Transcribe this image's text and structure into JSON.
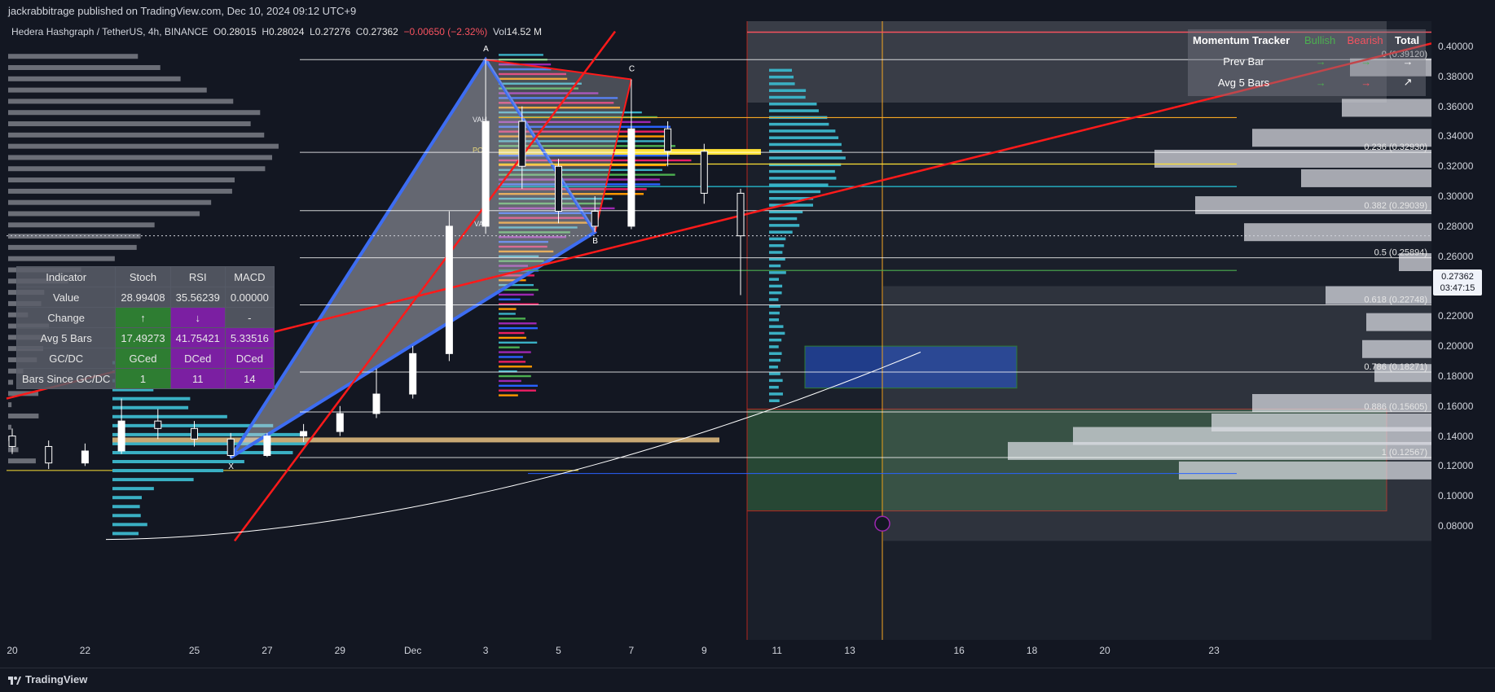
{
  "header": {
    "publisher": "jackrabbitrage published on TradingView.com, Dec 10, 2024 09:12 UTC+9",
    "symbol": "Hedera Hashgraph / TetherUS, 4h, BINANCE",
    "open_label": "O",
    "open": "0.28015",
    "high_label": "H",
    "high": "0.28024",
    "low_label": "L",
    "low": "0.27276",
    "close_label": "C",
    "close": "0.27362",
    "change": "−0.00650 (−2.32%)",
    "vol_label": "Vol",
    "vol": "14.52 M"
  },
  "momentum_tracker": {
    "title": "Momentum Tracker",
    "bullish": "Bullish",
    "bearish": "Bearish",
    "total": "Total",
    "rows": [
      {
        "label": "Prev Bar",
        "bull": "→",
        "bear": "→",
        "total": "→"
      },
      {
        "label": "Avg 5 Bars",
        "bull": "→",
        "bear": "→",
        "total": "↗"
      }
    ]
  },
  "indicator_table": {
    "headers": [
      "Indicator",
      "Stoch",
      "RSI",
      "MACD"
    ],
    "rows": [
      {
        "label": "Value",
        "stoch": "28.99408",
        "rsi": "35.56239",
        "macd": "0.00000"
      },
      {
        "label": "Change",
        "stoch": "↑",
        "rsi": "↓",
        "macd": "-"
      },
      {
        "label": "Avg 5 Bars",
        "stoch": "17.49273",
        "rsi": "41.75421",
        "macd": "5.33516"
      },
      {
        "label": "GC/DC",
        "stoch": "GCed",
        "rsi": "DCed",
        "macd": "DCed"
      },
      {
        "label": "Bars Since GC/DC",
        "stoch": "1",
        "rsi": "11",
        "macd": "14"
      }
    ]
  },
  "current_price": {
    "price": "0.27362",
    "countdown": "03:47:15"
  },
  "fib_labels": [
    {
      "text": "0 (0.39120)",
      "price": 0.3912
    },
    {
      "text": "0.236 (0.32930)",
      "price": 0.3293
    },
    {
      "text": "0.382 (0.29039)",
      "price": 0.29039
    },
    {
      "text": "0.5 (0.25894)",
      "price": 0.25894
    },
    {
      "text": "0.618 (0.22748)",
      "price": 0.22748
    },
    {
      "text": "0.786 (0.18271)",
      "price": 0.18271
    },
    {
      "text": "0.886 (0.15605)",
      "price": 0.15605
    },
    {
      "text": "1 (0.12567)",
      "price": 0.12567
    }
  ],
  "pattern_labels": [
    "X",
    "A",
    "B",
    "C"
  ],
  "vp_labels": {
    "vah": "VAH",
    "poc": "POC",
    "val": "VAL"
  },
  "colors": {
    "up": "#ffffff",
    "down": "#ffffff",
    "pattern": "#3d6df2",
    "trend": "#ff1a1a",
    "fib": "#ffffff",
    "poc": "#ffe135",
    "vp": "#3ab0c4"
  },
  "footer": {
    "brand": "TradingView"
  },
  "chart_data": {
    "type": "candlestick",
    "title": "Hedera Hashgraph / TetherUS, 4h, BINANCE",
    "x_ticks": [
      "20",
      "22",
      "25",
      "27",
      "29",
      "Dec",
      "3",
      "5",
      "7",
      "9",
      "11",
      "13",
      "16",
      "18",
      "20",
      "23"
    ],
    "y_ticks": [
      "0.40000",
      "0.38000",
      "0.36000",
      "0.34000",
      "0.32000",
      "0.30000",
      "0.28000",
      "0.26000",
      "0.24000",
      "0.22000",
      "0.20000",
      "0.18000",
      "0.16000",
      "0.14000",
      "0.12000",
      "0.10000",
      "0.08000"
    ],
    "ylim": [
      0.07,
      0.41
    ],
    "harmonic_points": [
      {
        "label": "X",
        "date": "Nov 26",
        "price": 0.1257
      },
      {
        "label": "A",
        "date": "Dec 3",
        "price": 0.3912
      },
      {
        "label": "B",
        "date": "Dec 6",
        "price": 0.276
      },
      {
        "label": "C",
        "date": "Dec 7",
        "price": 0.378
      }
    ],
    "candles_approx": [
      {
        "x": "Nov 20",
        "o": 0.14,
        "h": 0.145,
        "c": 0.133,
        "l": 0.128
      },
      {
        "x": "Nov 21",
        "o": 0.133,
        "h": 0.137,
        "c": 0.122,
        "l": 0.118
      },
      {
        "x": "Nov 22",
        "o": 0.122,
        "h": 0.135,
        "c": 0.13,
        "l": 0.12
      },
      {
        "x": "Nov 23",
        "o": 0.13,
        "h": 0.165,
        "c": 0.15,
        "l": 0.128
      },
      {
        "x": "Nov 24",
        "o": 0.15,
        "h": 0.158,
        "c": 0.145,
        "l": 0.138
      },
      {
        "x": "Nov 25",
        "o": 0.145,
        "h": 0.15,
        "c": 0.138,
        "l": 0.133
      },
      {
        "x": "Nov 26",
        "o": 0.138,
        "h": 0.142,
        "c": 0.127,
        "l": 0.125
      },
      {
        "x": "Nov 27",
        "o": 0.127,
        "h": 0.142,
        "c": 0.14,
        "l": 0.126
      },
      {
        "x": "Nov 28",
        "o": 0.14,
        "h": 0.148,
        "c": 0.143,
        "l": 0.136
      },
      {
        "x": "Nov 29",
        "o": 0.143,
        "h": 0.16,
        "c": 0.155,
        "l": 0.14
      },
      {
        "x": "Nov 30",
        "o": 0.155,
        "h": 0.185,
        "c": 0.168,
        "l": 0.152
      },
      {
        "x": "Dec 1",
        "o": 0.168,
        "h": 0.2,
        "c": 0.195,
        "l": 0.165
      },
      {
        "x": "Dec 2",
        "o": 0.195,
        "h": 0.29,
        "c": 0.28,
        "l": 0.19
      },
      {
        "x": "Dec 3",
        "o": 0.28,
        "h": 0.391,
        "c": 0.35,
        "l": 0.275
      },
      {
        "x": "Dec 4",
        "o": 0.35,
        "h": 0.36,
        "c": 0.32,
        "l": 0.305
      },
      {
        "x": "Dec 5",
        "o": 0.32,
        "h": 0.325,
        "c": 0.29,
        "l": 0.282
      },
      {
        "x": "Dec 6",
        "o": 0.29,
        "h": 0.3,
        "c": 0.28,
        "l": 0.276
      },
      {
        "x": "Dec 7",
        "o": 0.28,
        "h": 0.378,
        "c": 0.345,
        "l": 0.278
      },
      {
        "x": "Dec 8",
        "o": 0.345,
        "h": 0.35,
        "c": 0.33,
        "l": 0.32
      },
      {
        "x": "Dec 9",
        "o": 0.33,
        "h": 0.335,
        "c": 0.302,
        "l": 0.295
      },
      {
        "x": "Dec 10",
        "o": 0.302,
        "h": 0.305,
        "c": 0.2736,
        "l": 0.234
      }
    ]
  }
}
